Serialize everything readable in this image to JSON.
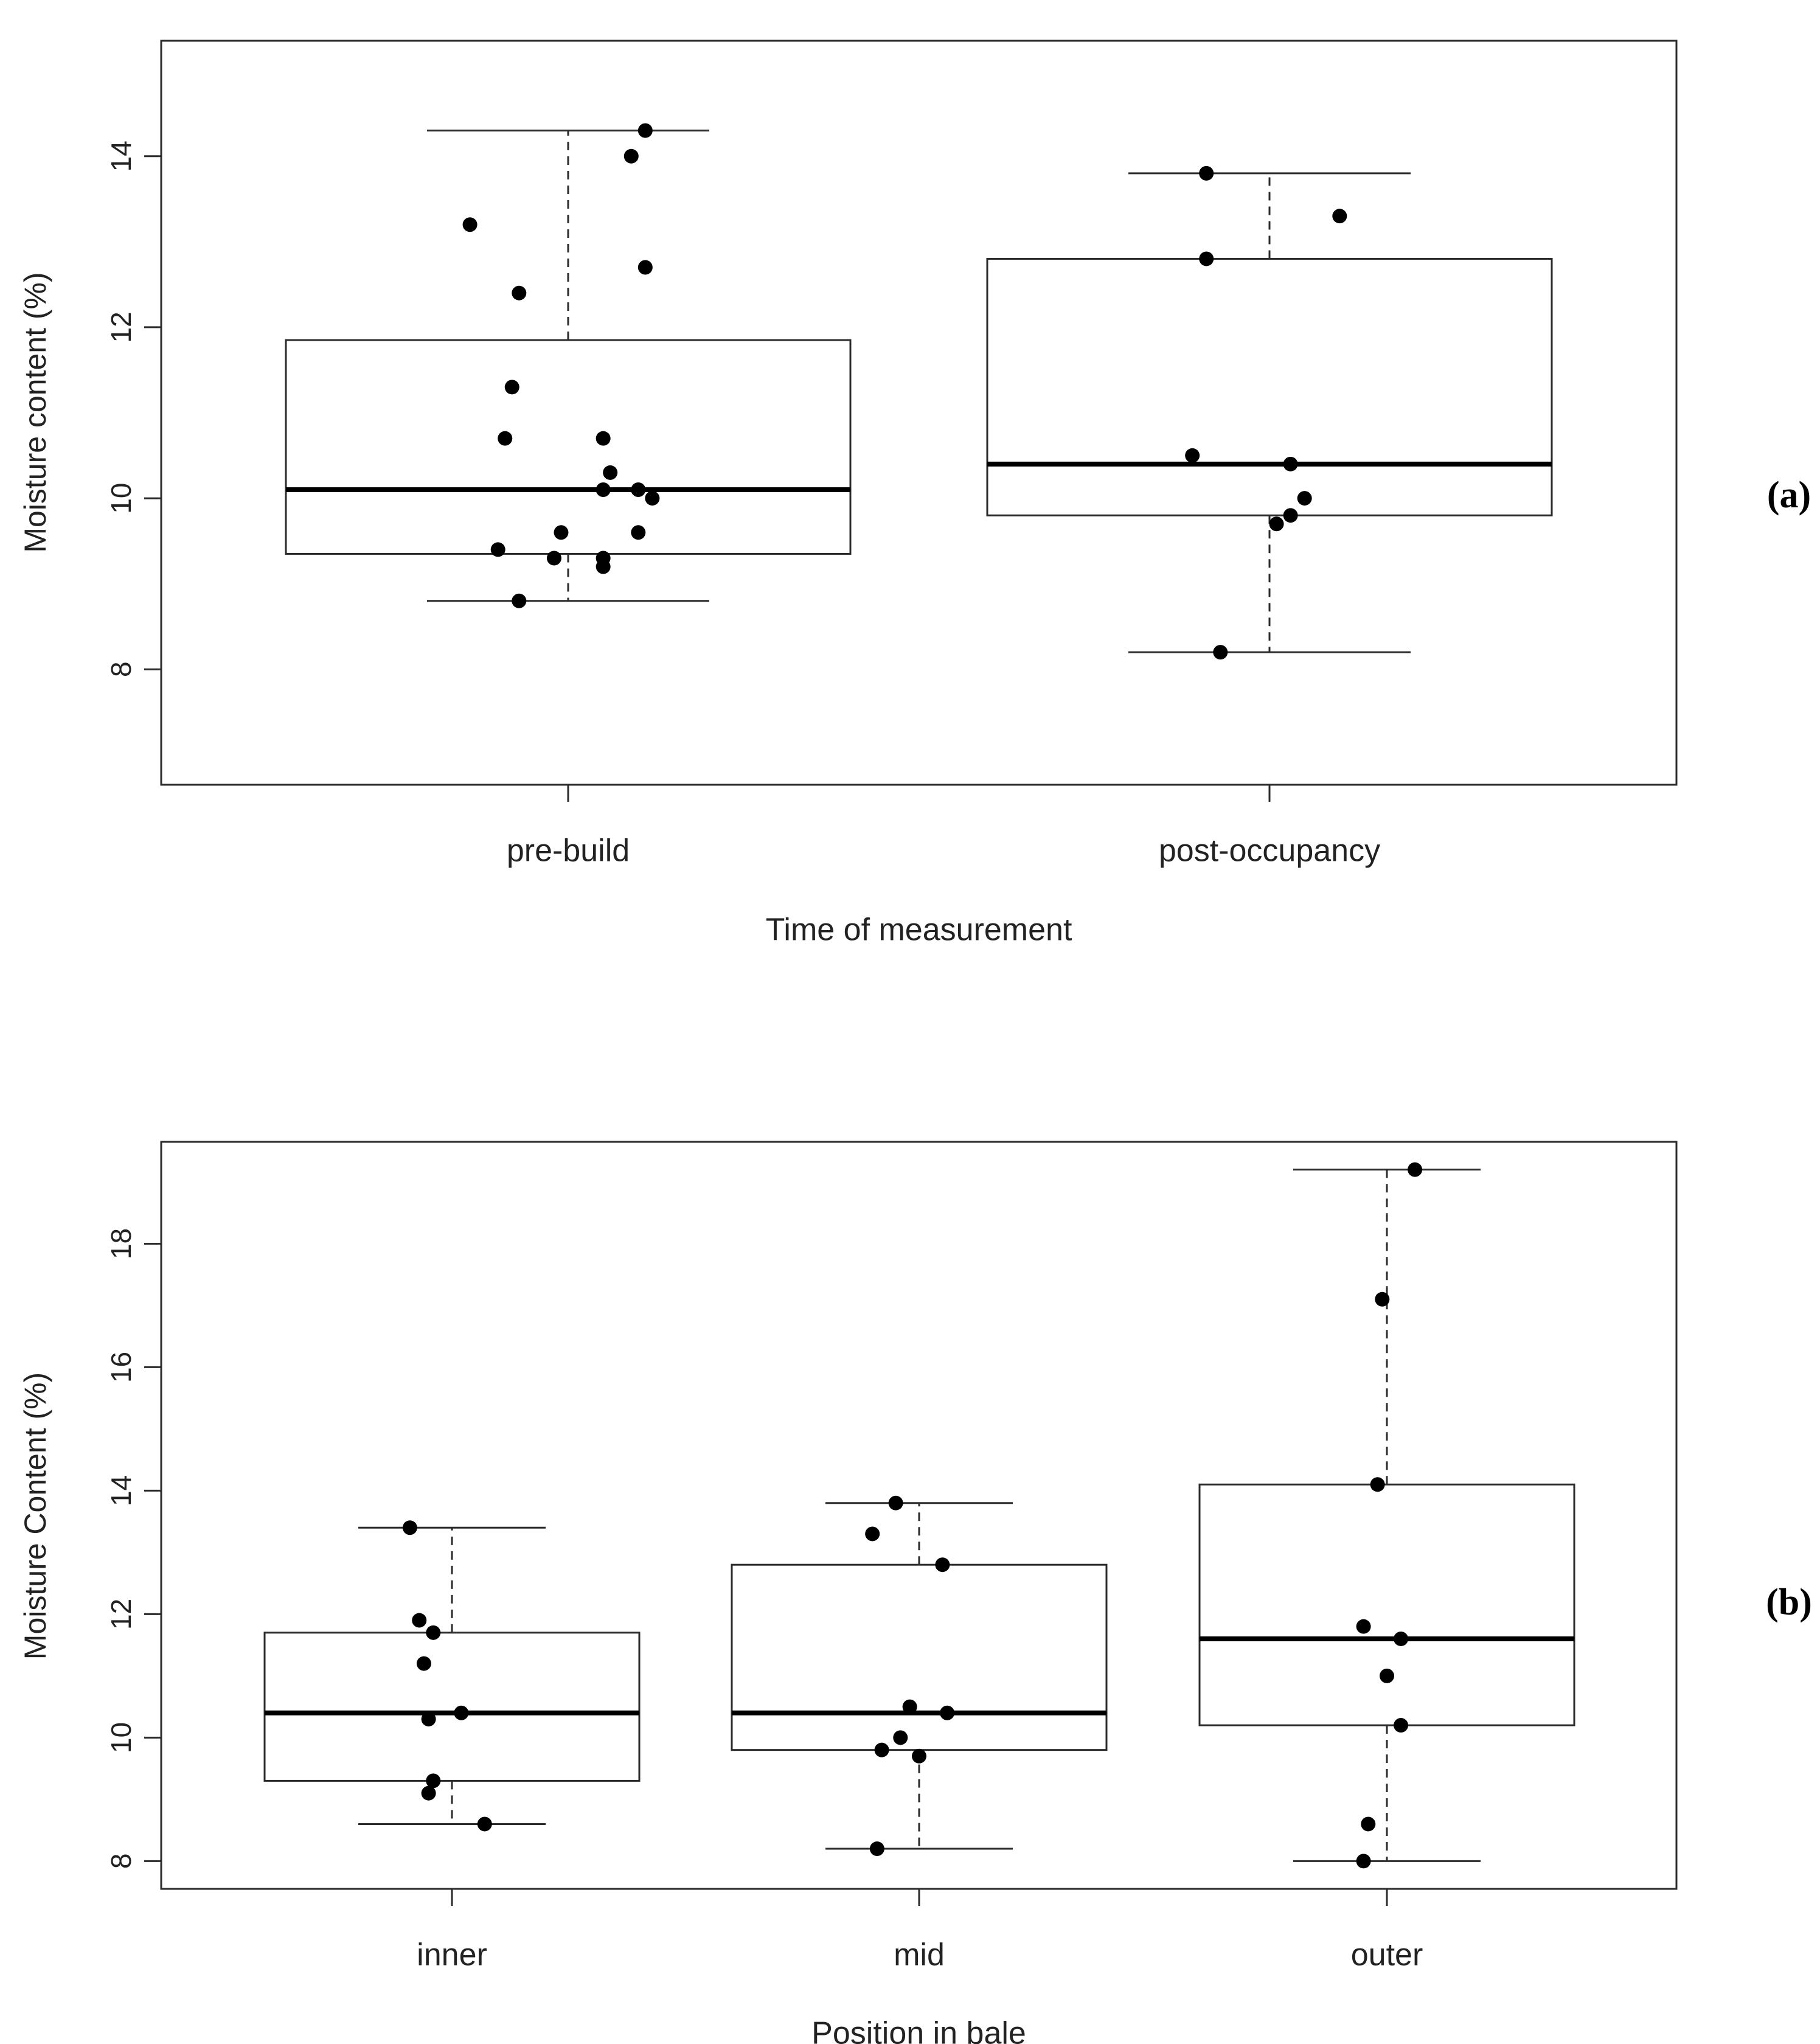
{
  "chart_data": [
    {
      "type": "boxplot",
      "panel_label": "(a)",
      "xlabel": "Time of measurement",
      "ylabel": "Moisture content (%)",
      "ylim": [
        6.65,
        15.35
      ],
      "yticks": [
        8,
        10,
        12,
        14
      ],
      "categories": [
        "pre-build",
        "post-occupancy"
      ],
      "boxes": [
        {
          "category": "pre-build",
          "whisker_low": 8.8,
          "q1": 9.35,
          "median": 10.1,
          "q3": 11.85,
          "whisker_high": 14.3
        },
        {
          "category": "post-occupancy",
          "whisker_low": 8.2,
          "q1": 9.8,
          "median": 10.4,
          "q3": 12.8,
          "whisker_high": 13.8
        }
      ],
      "points": [
        {
          "category": "pre-build",
          "jitter": -0.14,
          "value": 13.2
        },
        {
          "category": "pre-build",
          "jitter": 0.11,
          "value": 14.3
        },
        {
          "category": "pre-build",
          "jitter": 0.09,
          "value": 14.0
        },
        {
          "category": "pre-build",
          "jitter": 0.11,
          "value": 12.7
        },
        {
          "category": "pre-build",
          "jitter": -0.07,
          "value": 12.4
        },
        {
          "category": "pre-build",
          "jitter": -0.08,
          "value": 11.3
        },
        {
          "category": "pre-build",
          "jitter": -0.09,
          "value": 10.7
        },
        {
          "category": "pre-build",
          "jitter": 0.05,
          "value": 10.7
        },
        {
          "category": "pre-build",
          "jitter": 0.06,
          "value": 10.3
        },
        {
          "category": "pre-build",
          "jitter": 0.05,
          "value": 10.1
        },
        {
          "category": "pre-build",
          "jitter": 0.1,
          "value": 10.1
        },
        {
          "category": "pre-build",
          "jitter": 0.12,
          "value": 10.0
        },
        {
          "category": "pre-build",
          "jitter": -0.01,
          "value": 9.6
        },
        {
          "category": "pre-build",
          "jitter": 0.1,
          "value": 9.6
        },
        {
          "category": "pre-build",
          "jitter": -0.1,
          "value": 9.4
        },
        {
          "category": "pre-build",
          "jitter": -0.02,
          "value": 9.3
        },
        {
          "category": "pre-build",
          "jitter": 0.05,
          "value": 9.3
        },
        {
          "category": "pre-build",
          "jitter": 0.05,
          "value": 9.2
        },
        {
          "category": "pre-build",
          "jitter": -0.07,
          "value": 8.8
        },
        {
          "category": "post-occupancy",
          "jitter": -0.09,
          "value": 13.8
        },
        {
          "category": "post-occupancy",
          "jitter": 0.1,
          "value": 13.3
        },
        {
          "category": "post-occupancy",
          "jitter": -0.09,
          "value": 12.8
        },
        {
          "category": "post-occupancy",
          "jitter": -0.11,
          "value": 10.5
        },
        {
          "category": "post-occupancy",
          "jitter": 0.03,
          "value": 10.4
        },
        {
          "category": "post-occupancy",
          "jitter": 0.05,
          "value": 10.0
        },
        {
          "category": "post-occupancy",
          "jitter": 0.03,
          "value": 9.8
        },
        {
          "category": "post-occupancy",
          "jitter": 0.01,
          "value": 9.7
        },
        {
          "category": "post-occupancy",
          "jitter": -0.07,
          "value": 8.2
        }
      ]
    },
    {
      "type": "boxplot",
      "panel_label": "(b)",
      "xlabel": "Position in bale",
      "ylabel": "Moisture Content (%)",
      "ylim": [
        7.55,
        19.65
      ],
      "yticks": [
        8,
        10,
        12,
        14,
        16,
        18
      ],
      "categories": [
        "inner",
        "mid",
        "outer"
      ],
      "boxes": [
        {
          "category": "inner",
          "whisker_low": 8.6,
          "q1": 9.3,
          "median": 10.4,
          "q3": 11.7,
          "whisker_high": 13.4
        },
        {
          "category": "mid",
          "whisker_low": 8.2,
          "q1": 9.8,
          "median": 10.4,
          "q3": 12.8,
          "whisker_high": 13.8
        },
        {
          "category": "outer",
          "whisker_low": 8.0,
          "q1": 10.2,
          "median": 11.6,
          "q3": 14.1,
          "whisker_high": 19.2
        }
      ],
      "points": [
        {
          "category": "inner",
          "jitter": -0.09,
          "value": 13.4
        },
        {
          "category": "inner",
          "jitter": -0.07,
          "value": 11.9
        },
        {
          "category": "inner",
          "jitter": -0.04,
          "value": 11.7
        },
        {
          "category": "inner",
          "jitter": -0.06,
          "value": 11.2
        },
        {
          "category": "inner",
          "jitter": -0.05,
          "value": 10.3
        },
        {
          "category": "inner",
          "jitter": 0.02,
          "value": 10.4
        },
        {
          "category": "inner",
          "jitter": -0.04,
          "value": 9.3
        },
        {
          "category": "inner",
          "jitter": -0.05,
          "value": 9.1
        },
        {
          "category": "inner",
          "jitter": 0.07,
          "value": 8.6
        },
        {
          "category": "mid",
          "jitter": -0.05,
          "value": 13.8
        },
        {
          "category": "mid",
          "jitter": -0.1,
          "value": 13.3
        },
        {
          "category": "mid",
          "jitter": 0.05,
          "value": 12.8
        },
        {
          "category": "mid",
          "jitter": -0.02,
          "value": 10.5
        },
        {
          "category": "mid",
          "jitter": 0.06,
          "value": 10.4
        },
        {
          "category": "mid",
          "jitter": -0.04,
          "value": 10.0
        },
        {
          "category": "mid",
          "jitter": -0.08,
          "value": 9.8
        },
        {
          "category": "mid",
          "jitter": 0.0,
          "value": 9.7
        },
        {
          "category": "mid",
          "jitter": -0.09,
          "value": 8.2
        },
        {
          "category": "outer",
          "jitter": 0.06,
          "value": 19.2
        },
        {
          "category": "outer",
          "jitter": -0.01,
          "value": 17.1
        },
        {
          "category": "outer",
          "jitter": -0.02,
          "value": 14.1
        },
        {
          "category": "outer",
          "jitter": -0.05,
          "value": 11.8
        },
        {
          "category": "outer",
          "jitter": 0.03,
          "value": 11.6
        },
        {
          "category": "outer",
          "jitter": 0.0,
          "value": 11.0
        },
        {
          "category": "outer",
          "jitter": 0.03,
          "value": 10.2
        },
        {
          "category": "outer",
          "jitter": -0.04,
          "value": 8.6
        },
        {
          "category": "outer",
          "jitter": -0.05,
          "value": 8.0
        }
      ]
    }
  ]
}
